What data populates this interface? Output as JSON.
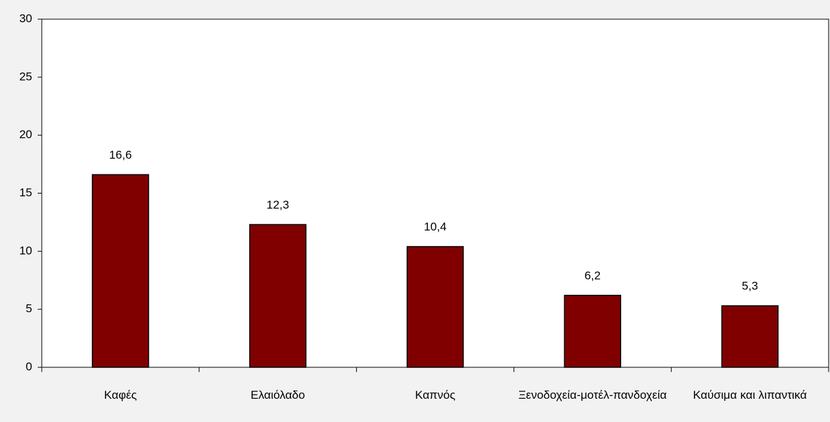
{
  "chart_data": {
    "type": "bar",
    "categories": [
      "Καφές",
      "Ελαιόλαδο",
      "Καπνός",
      "Ξενοδοχεία-μοτέλ-πανδοχεία",
      "Καύσιμα και λιπαντικά"
    ],
    "values": [
      16.6,
      12.3,
      10.4,
      6.2,
      5.3
    ],
    "value_labels": [
      "16,6",
      "12,3",
      "10,4",
      "6,2",
      "5,3"
    ],
    "color": "#800000",
    "ylim": [
      0,
      30
    ],
    "yticks": [
      0,
      5,
      10,
      15,
      20,
      25,
      30
    ],
    "grid": false
  }
}
